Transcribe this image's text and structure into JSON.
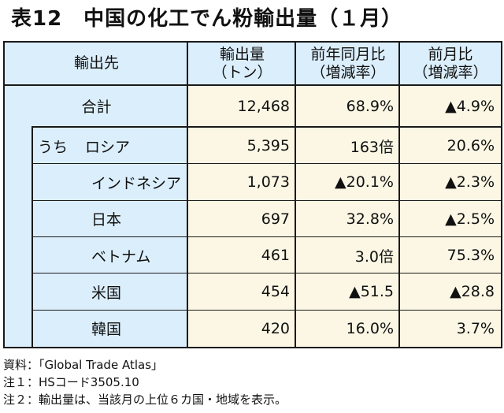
{
  "title": "表12　中国の化工でん粉輸出量（１月）",
  "headers": {
    "col1": "輸出先",
    "col2": [
      "輸出量",
      "（トン）"
    ],
    "col3": [
      "前年同月比",
      "（増減率）"
    ],
    "col4": [
      "前月比",
      "（増減率）"
    ]
  },
  "total": {
    "label": "合計",
    "volume": "12,468",
    "yoy": "68.9%",
    "mom": "▲4.9%"
  },
  "breakdown_prefix": "うち",
  "rows": [
    {
      "label": "ロシア",
      "volume": "5,395",
      "yoy": "163倍",
      "mom": "20.6%"
    },
    {
      "label": "インドネシア",
      "volume": "1,073",
      "yoy": "▲20.1%",
      "mom": "▲2.3%"
    },
    {
      "label": "日本",
      "volume": "697",
      "yoy": "32.8%",
      "mom": "▲2.5%"
    },
    {
      "label": "ベトナム",
      "volume": "461",
      "yoy": "3.0倍",
      "mom": "75.3%"
    },
    {
      "label": "米国",
      "volume": "454",
      "yoy": "▲51.5",
      "mom": "▲28.8"
    },
    {
      "label": "韓国",
      "volume": "420",
      "yoy": "16.0%",
      "mom": "3.7%"
    }
  ],
  "notes": [
    "資料：「Global Trade Atlas」",
    "注１：HSコード3505.10",
    "注２：輸出量は、当該月の上位６カ国・地域を表示。"
  ]
}
